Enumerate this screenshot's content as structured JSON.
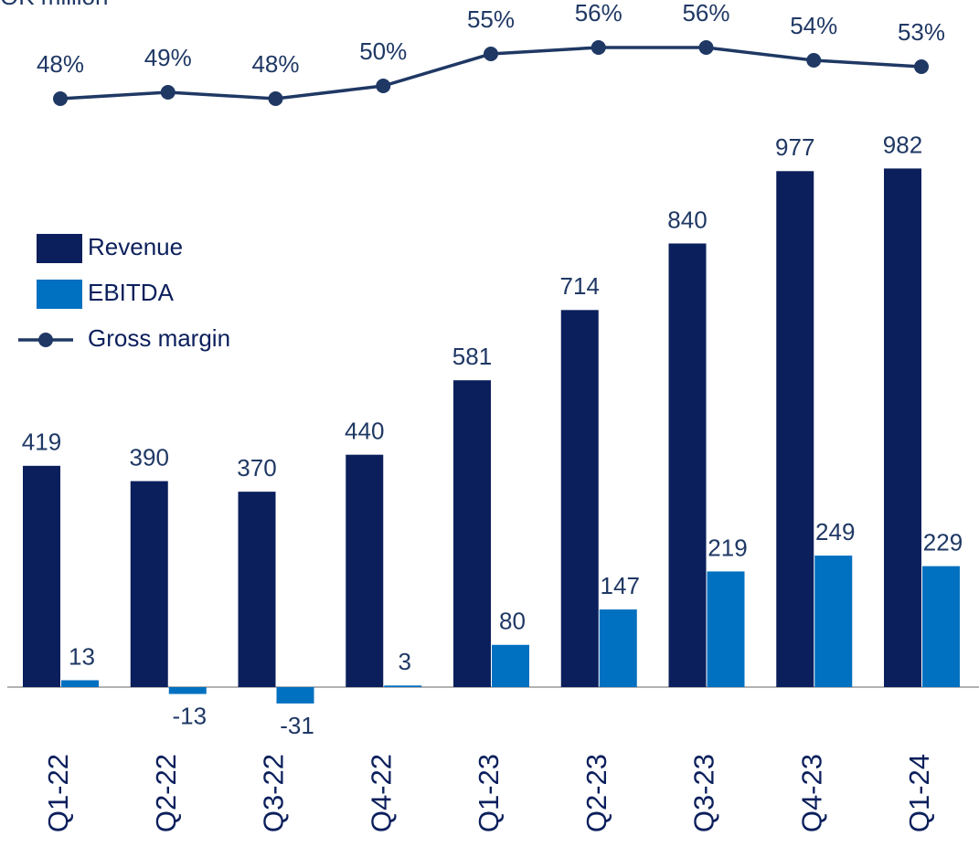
{
  "chart_data": {
    "type": "bar",
    "title": "OK million",
    "categories": [
      "Q1-22",
      "Q2-22",
      "Q3-22",
      "Q4-22",
      "Q1-23",
      "Q2-23",
      "Q3-23",
      "Q4-23",
      "Q1-24"
    ],
    "ylim": [
      0,
      1000
    ],
    "y2lim": [
      40,
      60
    ],
    "series": [
      {
        "name": "Revenue",
        "type": "bar",
        "color": "#0b1f5c",
        "values": [
          419,
          390,
          370,
          440,
          581,
          714,
          840,
          977,
          982
        ]
      },
      {
        "name": "EBITDA",
        "type": "bar",
        "color": "#0070c0",
        "values": [
          13,
          -13,
          -31,
          3,
          80,
          147,
          219,
          249,
          229
        ]
      },
      {
        "name": "Gross margin",
        "type": "line",
        "axis": "y2",
        "color": "#1f3864",
        "values": [
          48,
          49,
          48,
          50,
          55,
          56,
          56,
          54,
          53
        ],
        "value_labels": [
          "48%",
          "49%",
          "48%",
          "50%",
          "55%",
          "56%",
          "56%",
          "54%",
          "53%"
        ]
      }
    ]
  }
}
